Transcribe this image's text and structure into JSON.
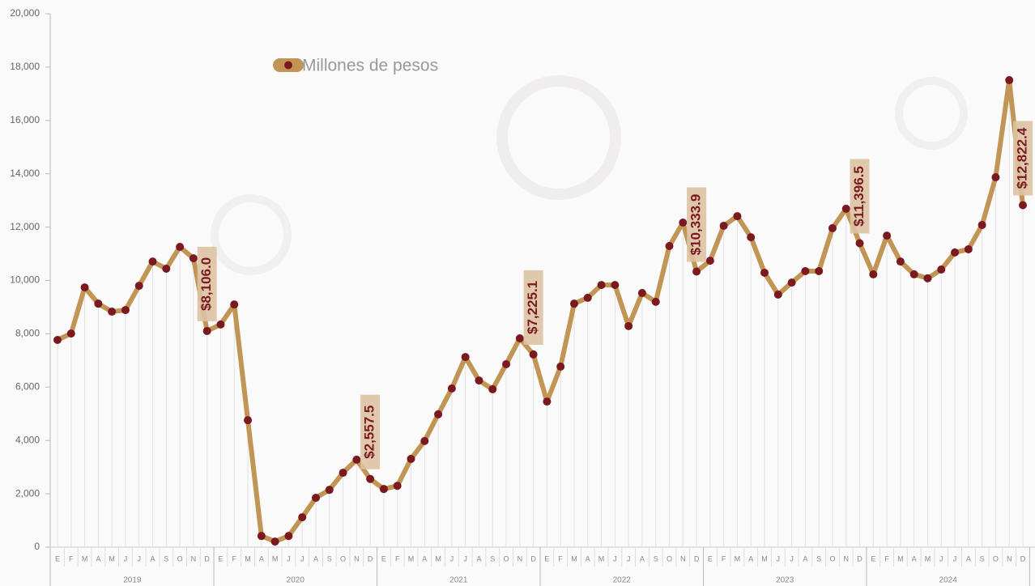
{
  "chart_data": {
    "type": "line",
    "categories": [
      "E",
      "F",
      "M",
      "A",
      "M",
      "J",
      "J",
      "A",
      "S",
      "O",
      "N",
      "D",
      "E",
      "F",
      "M",
      "A",
      "M",
      "J",
      "J",
      "A",
      "S",
      "O",
      "N",
      "D",
      "E",
      "F",
      "M",
      "A",
      "M",
      "J",
      "J",
      "A",
      "S",
      "O",
      "N",
      "D",
      "E",
      "F",
      "M",
      "A",
      "M",
      "J",
      "J",
      "A",
      "S",
      "O",
      "N",
      "D",
      "E",
      "F",
      "M",
      "A",
      "M",
      "J",
      "J",
      "A",
      "S",
      "O",
      "N",
      "D",
      "E",
      "F",
      "M",
      "A",
      "M",
      "J",
      "J",
      "A",
      "S",
      "O",
      "N",
      "D"
    ],
    "years": [
      "2019",
      "2020",
      "2021",
      "2022",
      "2023",
      "2024"
    ],
    "series": [
      {
        "name": "Millones de pesos",
        "color": "#c09556",
        "marker_color": "#7a1a20",
        "values": [
          7770,
          8010,
          9740,
          9130,
          8830,
          8890,
          9800,
          10710,
          10440,
          11260,
          10830,
          8106.0,
          8350,
          9100,
          4760,
          420,
          210,
          420,
          1120,
          1850,
          2150,
          2790,
          3280,
          2557.5,
          2180,
          2300,
          3310,
          3980,
          4980,
          5950,
          7130,
          6250,
          5920,
          6860,
          7830,
          7225.1,
          5460,
          6770,
          9130,
          9350,
          9830,
          9830,
          8290,
          9530,
          9200,
          11290,
          12170,
          10333.9,
          10740,
          12050,
          12410,
          11620,
          10290,
          9470,
          9920,
          10350,
          10350,
          11960,
          12690,
          11396.5,
          10230,
          11680,
          10710,
          10230,
          10080,
          10410,
          11050,
          11170,
          12080,
          13870,
          17510,
          12822.4
        ],
        "value_labels": [
          null,
          null,
          null,
          null,
          null,
          null,
          null,
          null,
          null,
          null,
          null,
          "$8,106.0",
          null,
          null,
          null,
          null,
          null,
          null,
          null,
          null,
          null,
          null,
          null,
          "$2,557.5",
          null,
          null,
          null,
          null,
          null,
          null,
          null,
          null,
          null,
          null,
          null,
          "$7,225.1",
          null,
          null,
          null,
          null,
          null,
          null,
          null,
          null,
          null,
          null,
          null,
          "$10,333.9",
          null,
          null,
          null,
          null,
          null,
          null,
          null,
          null,
          null,
          null,
          null,
          "$11,396.5",
          null,
          null,
          null,
          null,
          null,
          null,
          null,
          null,
          null,
          null,
          null,
          "$12,822.4"
        ]
      }
    ],
    "ylim": [
      0,
      20000
    ],
    "yticks": [
      0,
      {
        "value": 2000,
        "label": "2,000"
      },
      {
        "value": 4000,
        "label": "4,000"
      },
      {
        "value": 6000,
        "label": "6,000"
      },
      {
        "value": 8000,
        "label": "8,000"
      },
      {
        "value": 10000,
        "label": "10,000"
      },
      {
        "value": 12000,
        "label": "12,000"
      },
      {
        "value": 14000,
        "label": "14,000"
      },
      {
        "value": 16000,
        "label": "16,000"
      },
      {
        "value": 18000,
        "label": "18,000"
      },
      {
        "value": 20000,
        "label": "20,000"
      }
    ]
  }
}
